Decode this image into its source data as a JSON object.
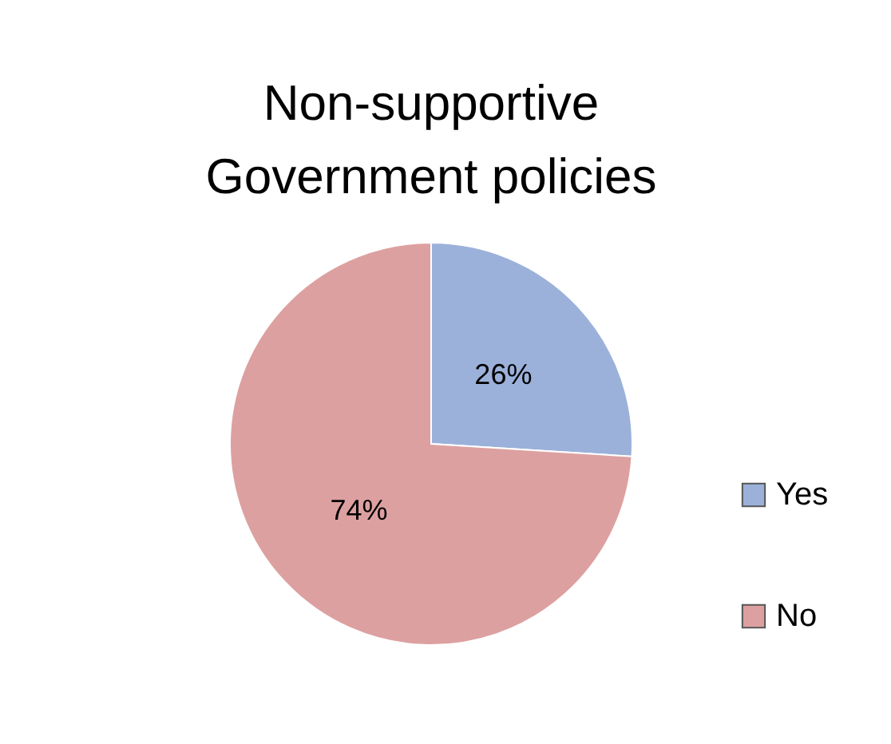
{
  "chart_data": {
    "type": "pie",
    "title": "Non-supportive Government policies",
    "categories": [
      "Yes",
      "No"
    ],
    "values": [
      26,
      74
    ],
    "colors": [
      "#9bb1da",
      "#dda0a0"
    ],
    "value_labels": [
      "26%",
      "74%"
    ],
    "legend": "right"
  }
}
